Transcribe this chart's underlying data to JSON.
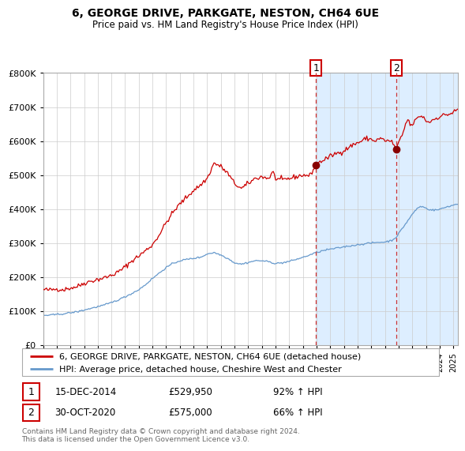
{
  "title1": "6, GEORGE DRIVE, PARKGATE, NESTON, CH64 6UE",
  "title2": "Price paid vs. HM Land Registry's House Price Index (HPI)",
  "legend_line1": "6, GEORGE DRIVE, PARKGATE, NESTON, CH64 6UE (detached house)",
  "legend_line2": "HPI: Average price, detached house, Cheshire West and Chester",
  "annotation1_date": "15-DEC-2014",
  "annotation1_price": "£529,950",
  "annotation1_hpi": "92% ↑ HPI",
  "annotation1_year": 2014.96,
  "annotation1_value": 529950,
  "annotation2_date": "30-OCT-2020",
  "annotation2_price": "£575,000",
  "annotation2_hpi": "66% ↑ HPI",
  "annotation2_year": 2020.83,
  "annotation2_value": 575000,
  "footer": "Contains HM Land Registry data © Crown copyright and database right 2024.\nThis data is licensed under the Open Government Licence v3.0.",
  "ylim": [
    0,
    800000
  ],
  "xlim_start": 1995.0,
  "xlim_end": 2025.3,
  "red_color": "#cc0000",
  "blue_color": "#6699cc",
  "shade_color": "#ddeeff",
  "background_color": "#ffffff",
  "grid_color": "#cccccc"
}
